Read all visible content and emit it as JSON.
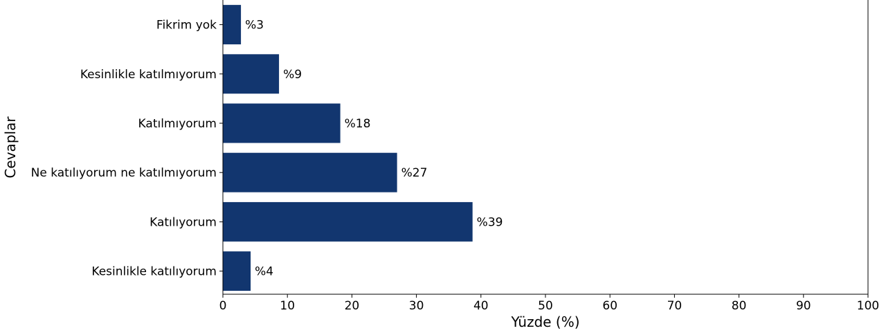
{
  "chart_data": {
    "type": "bar",
    "orientation": "horizontal",
    "categories": [
      "Fikrim yok",
      "Kesinlikle katılmıyorum",
      "Katılmıyorum",
      "Ne katılıyorum ne katılmıyorum",
      "Katılıyorum",
      "Kesinlikle katılıyorum"
    ],
    "values": [
      2.8,
      8.7,
      18.2,
      27.0,
      38.7,
      4.3
    ],
    "data_labels": [
      "%3",
      "%9",
      "%18",
      "%27",
      "%39",
      "%4"
    ],
    "xlabel": "Yüzde (%)",
    "ylabel": "Cevaplar",
    "xlim": [
      0,
      100
    ],
    "xticks": [
      0,
      10,
      20,
      30,
      40,
      50,
      60,
      70,
      80,
      90,
      100
    ],
    "bar_color": "#12366f",
    "grid": false,
    "legend": "none"
  }
}
